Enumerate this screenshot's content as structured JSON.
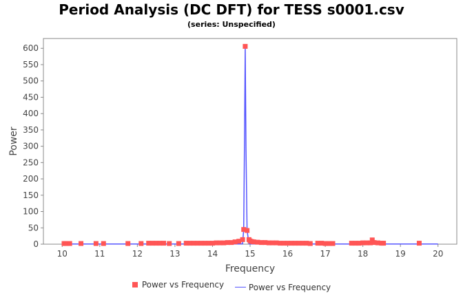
{
  "chart_data": {
    "type": "scatter",
    "title": "Period Analysis (DC DFT) for TESS s0001.csv",
    "subtitle": "(series: Unspecified)",
    "xlabel": "Frequency",
    "ylabel": "Power",
    "xlim": [
      9.5,
      20.5
    ],
    "ylim": [
      0,
      630
    ],
    "xticks": [
      "10",
      "11",
      "12",
      "13",
      "14",
      "15",
      "16",
      "17",
      "18",
      "19",
      "20"
    ],
    "yticks": [
      "0",
      "50",
      "100",
      "150",
      "200",
      "250",
      "300",
      "350",
      "400",
      "450",
      "500",
      "550",
      "600"
    ],
    "grid": false,
    "legend_position": "bottom",
    "colors": {
      "scatter": "#ff5555",
      "line": "#5555ff"
    },
    "series": [
      {
        "name": "Power vs Frequency",
        "kind": "scatter",
        "x": [
          10.05,
          10.1,
          10.2,
          10.5,
          10.9,
          11.1,
          11.75,
          12.1,
          12.3,
          12.4,
          12.5,
          12.6,
          12.7,
          12.85,
          13.1,
          13.3,
          13.4,
          13.5,
          13.6,
          13.7,
          13.8,
          13.9,
          14.0,
          14.1,
          14.2,
          14.3,
          14.4,
          14.5,
          14.6,
          14.7,
          14.8,
          14.83,
          14.87,
          14.92,
          14.97,
          15.0,
          15.05,
          15.1,
          15.2,
          15.3,
          15.4,
          15.5,
          15.6,
          15.7,
          15.8,
          15.9,
          16.0,
          16.1,
          16.2,
          16.3,
          16.4,
          16.5,
          16.6,
          16.8,
          16.9,
          17.0,
          17.1,
          17.2,
          17.7,
          17.8,
          17.9,
          18.0,
          18.1,
          18.2,
          18.25,
          18.3,
          18.4,
          18.5,
          18.55,
          19.5
        ],
        "y": [
          2,
          2,
          2,
          2,
          2,
          2,
          2,
          2,
          3,
          3,
          3,
          3,
          3,
          2,
          2,
          3,
          3,
          3,
          3,
          3,
          3,
          3,
          3,
          4,
          4,
          4,
          5,
          5,
          7,
          9,
          14,
          45,
          606,
          42,
          14,
          10,
          8,
          7,
          6,
          5,
          5,
          4,
          4,
          4,
          3,
          3,
          3,
          3,
          3,
          3,
          3,
          3,
          2,
          3,
          3,
          2,
          2,
          2,
          3,
          3,
          3,
          4,
          4,
          4,
          13,
          5,
          4,
          3,
          3,
          3
        ]
      },
      {
        "name": "Power vs Frequency",
        "kind": "line",
        "x": [
          10.0,
          10.5,
          11.0,
          11.5,
          12.0,
          12.5,
          13.0,
          13.5,
          14.0,
          14.5,
          14.7,
          14.8,
          14.83,
          14.85,
          14.87,
          14.89,
          14.92,
          14.97,
          15.0,
          15.2,
          15.5,
          16.0,
          16.5,
          17.0,
          17.5,
          18.0,
          18.5,
          19.0,
          19.5,
          20.0
        ],
        "y": [
          0.5,
          0.5,
          0.5,
          0.5,
          0.5,
          0.5,
          0.5,
          0.5,
          0.5,
          0.5,
          0.5,
          1,
          45,
          300,
          606,
          300,
          42,
          1,
          0.5,
          0.5,
          0.5,
          0.5,
          0.5,
          0.5,
          0.5,
          0.5,
          0.5,
          0.5,
          0.5,
          0.5
        ]
      }
    ]
  },
  "legend": {
    "scatter_label": "Power vs Frequency",
    "line_label": "Power vs Frequency"
  }
}
